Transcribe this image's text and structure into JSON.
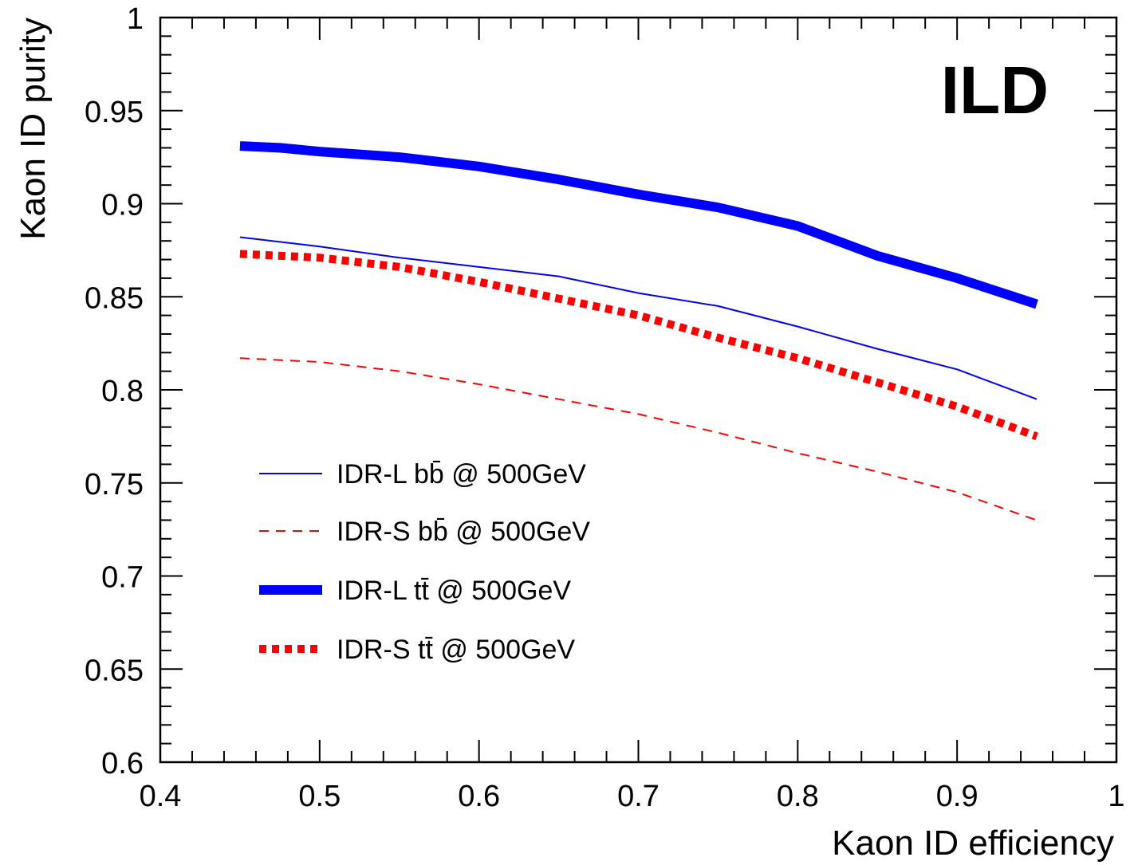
{
  "chart_data": {
    "type": "line",
    "xlabel": "Kaon ID efficiency",
    "ylabel": "Kaon ID purity",
    "watermark": "ILD",
    "xlim": [
      0.4,
      1.0
    ],
    "ylim": [
      0.6,
      1.0
    ],
    "x_ticks": [
      "0.4",
      "0.5",
      "0.6",
      "0.7",
      "0.8",
      "0.9",
      "1"
    ],
    "y_ticks": [
      "0.6",
      "0.65",
      "0.7",
      "0.75",
      "0.8",
      "0.85",
      "0.9",
      "0.95",
      "1"
    ],
    "grid": false,
    "legend_position": "bottom-left",
    "series": [
      {
        "name": "IDR-L bb̄ @ 500GeV",
        "color": "#0000ff",
        "style": "solid-thin",
        "points": [
          [
            0.45,
            0.882
          ],
          [
            0.5,
            0.877
          ],
          [
            0.55,
            0.871
          ],
          [
            0.6,
            0.866
          ],
          [
            0.65,
            0.861
          ],
          [
            0.7,
            0.852
          ],
          [
            0.75,
            0.845
          ],
          [
            0.8,
            0.834
          ],
          [
            0.85,
            0.822
          ],
          [
            0.9,
            0.811
          ],
          [
            0.95,
            0.795
          ]
        ]
      },
      {
        "name": "IDR-S bb̄ @ 500GeV",
        "color": "#ff0000",
        "style": "dashed-thin",
        "points": [
          [
            0.45,
            0.817
          ],
          [
            0.5,
            0.815
          ],
          [
            0.55,
            0.81
          ],
          [
            0.6,
            0.803
          ],
          [
            0.65,
            0.795
          ],
          [
            0.7,
            0.787
          ],
          [
            0.75,
            0.777
          ],
          [
            0.8,
            0.766
          ],
          [
            0.85,
            0.756
          ],
          [
            0.9,
            0.745
          ],
          [
            0.95,
            0.73
          ]
        ]
      },
      {
        "name": "IDR-L tt̄ @ 500GeV",
        "color": "#0000ff",
        "style": "solid-thick",
        "points": [
          [
            0.45,
            0.931
          ],
          [
            0.475,
            0.93
          ],
          [
            0.5,
            0.928
          ],
          [
            0.55,
            0.925
          ],
          [
            0.6,
            0.92
          ],
          [
            0.65,
            0.913
          ],
          [
            0.7,
            0.905
          ],
          [
            0.75,
            0.898
          ],
          [
            0.8,
            0.888
          ],
          [
            0.85,
            0.872
          ],
          [
            0.9,
            0.86
          ],
          [
            0.95,
            0.846
          ]
        ]
      },
      {
        "name": "IDR-S tt̄ @ 500GeV",
        "color": "#ff0000",
        "style": "dashed-thick",
        "points": [
          [
            0.45,
            0.873
          ],
          [
            0.5,
            0.871
          ],
          [
            0.55,
            0.866
          ],
          [
            0.6,
            0.858
          ],
          [
            0.65,
            0.849
          ],
          [
            0.7,
            0.84
          ],
          [
            0.75,
            0.828
          ],
          [
            0.8,
            0.817
          ],
          [
            0.85,
            0.804
          ],
          [
            0.9,
            0.791
          ],
          [
            0.95,
            0.775
          ]
        ]
      }
    ]
  }
}
